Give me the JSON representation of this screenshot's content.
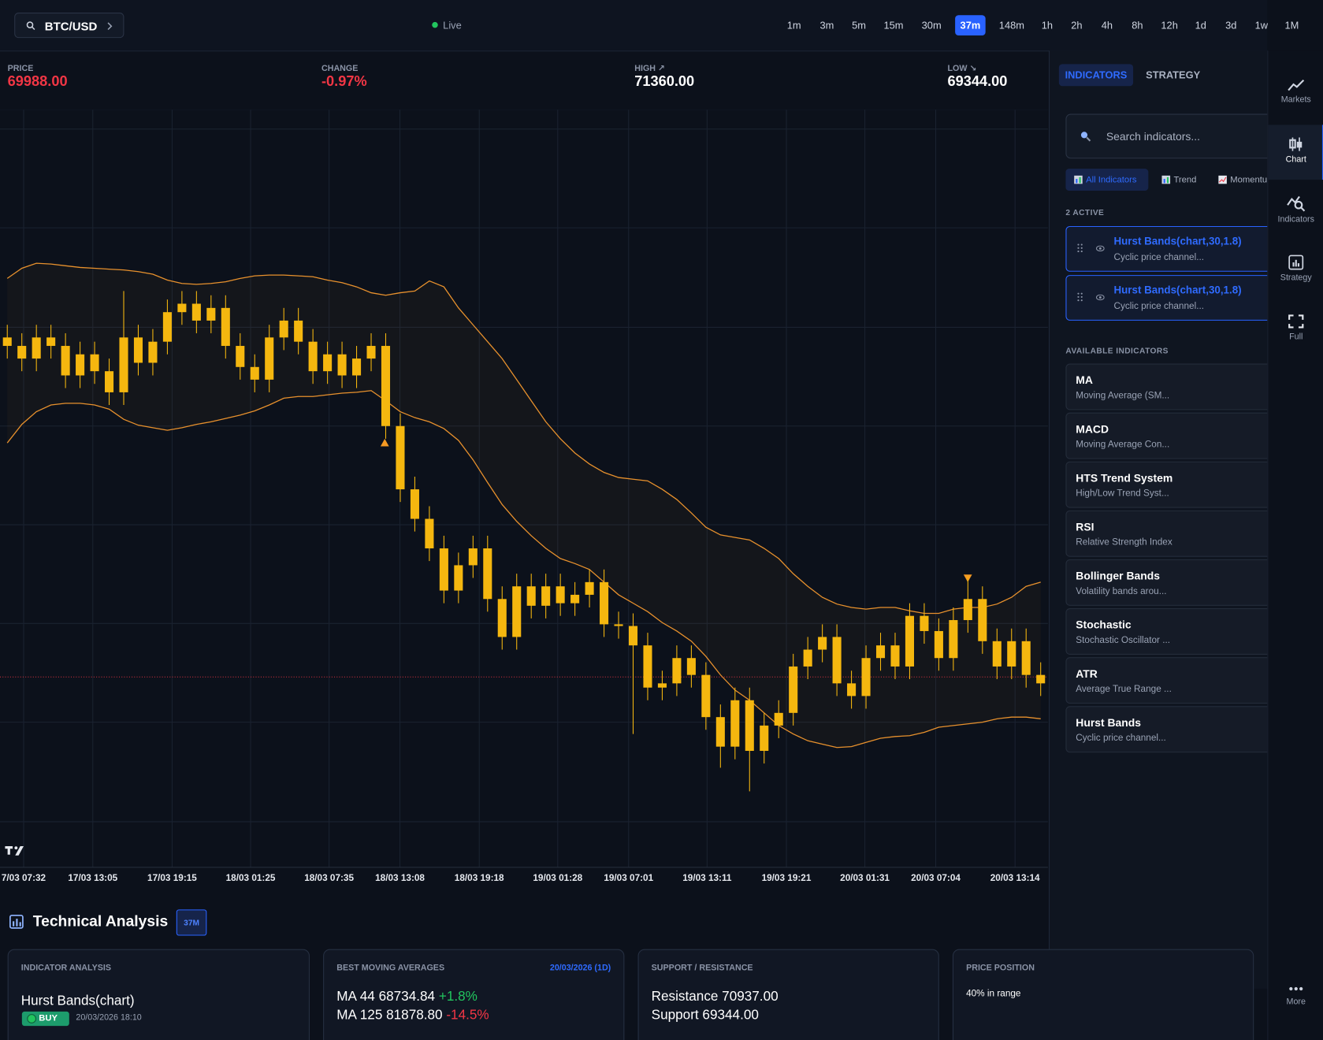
{
  "top_bar": {
    "symbol": "BTC/USD",
    "status": "Live",
    "timeframes": [
      "1m",
      "3m",
      "5m",
      "15m",
      "30m",
      "37m",
      "148m",
      "1h",
      "2h",
      "4h",
      "8h",
      "12h",
      "1d",
      "3d",
      "1w",
      "1M"
    ],
    "active_timeframe": "37m"
  },
  "stats": [
    {
      "label": "PRICE",
      "value": "69988.00",
      "color": "#f23645"
    },
    {
      "label": "CHANGE",
      "value": "-0.97%",
      "color": "#f23645"
    },
    {
      "label": "HIGH ↗",
      "value": "71360.00",
      "color": "#ffffff"
    },
    {
      "label": "LOW ↘",
      "value": "69344.00",
      "color": "#ffffff"
    }
  ],
  "chart_data": {
    "type": "candlestick",
    "color": "#f5b70f",
    "ylim": [
      68860,
      73350
    ],
    "open": [
      72000,
      71950,
      71875,
      72000,
      71950,
      71775,
      71900,
      71800,
      71675,
      72000,
      71850,
      71975,
      72150,
      72200,
      72100,
      72175,
      71950,
      71825,
      71750,
      72000,
      72100,
      71975,
      71800,
      71900,
      71775,
      71875,
      71950,
      71475,
      71100,
      70925,
      70750,
      70500,
      70650,
      70750,
      70450,
      70225,
      70525,
      70410,
      70525,
      70425,
      70475,
      70550,
      70300,
      70290,
      70175,
      69925,
      69950,
      70100,
      70000,
      69750,
      69575,
      69850,
      69550,
      69700,
      69775,
      70050,
      70150,
      70225,
      69950,
      69875,
      70100,
      70175,
      70050,
      70350,
      70260,
      70100,
      70325,
      70450,
      70200,
      70050,
      70200,
      70000
    ],
    "high": [
      72075,
      72025,
      72075,
      72075,
      72025,
      71975,
      71975,
      71875,
      72275,
      72075,
      72050,
      72225,
      72275,
      72275,
      72250,
      72250,
      72025,
      71900,
      72075,
      72175,
      72175,
      72050,
      71975,
      71975,
      71950,
      72025,
      72025,
      71550,
      71175,
      71000,
      70825,
      70725,
      70825,
      70825,
      70525,
      70600,
      70600,
      70600,
      70600,
      70550,
      70625,
      70625,
      70375,
      70365,
      70250,
      70025,
      70175,
      70175,
      70075,
      69825,
      69925,
      69925,
      69775,
      69850,
      70125,
      70225,
      70300,
      70300,
      70025,
      70175,
      70250,
      70250,
      70425,
      70425,
      70335,
      70400,
      70585,
      70525,
      70275,
      70275,
      70275,
      70075
    ],
    "low": [
      71875,
      71800,
      71800,
      71875,
      71700,
      71700,
      71725,
      71600,
      71600,
      71775,
      71775,
      71900,
      72075,
      72025,
      72025,
      71875,
      71750,
      71675,
      71675,
      71925,
      71900,
      71725,
      71725,
      71700,
      71700,
      71800,
      71400,
      71025,
      70850,
      70675,
      70425,
      70425,
      70575,
      70375,
      70150,
      70150,
      70335,
      70335,
      70350,
      70350,
      70400,
      70225,
      70215,
      69650,
      69850,
      69850,
      69875,
      69925,
      69675,
      69450,
      69500,
      69310,
      69475,
      69625,
      69700,
      69975,
      70075,
      69875,
      69800,
      69800,
      70025,
      69975,
      69975,
      70185,
      70025,
      70025,
      70250,
      70125,
      69975,
      69975,
      69925,
      69875
    ],
    "close": [
      71950,
      71875,
      72000,
      71950,
      71775,
      71900,
      71800,
      71675,
      72000,
      71850,
      71975,
      72150,
      72200,
      72100,
      72175,
      71950,
      71825,
      71750,
      72000,
      72100,
      71975,
      71800,
      71900,
      71775,
      71875,
      71950,
      71475,
      71100,
      70925,
      70750,
      70500,
      70650,
      70750,
      70450,
      70225,
      70525,
      70410,
      70525,
      70425,
      70475,
      70550,
      70300,
      70290,
      70175,
      69925,
      69950,
      70100,
      70000,
      69750,
      69575,
      69850,
      69550,
      69700,
      69775,
      70050,
      70150,
      70225,
      69950,
      69875,
      70100,
      70175,
      70050,
      70350,
      70260,
      70100,
      70325,
      70450,
      70200,
      70050,
      70200,
      70000,
      69950
    ],
    "bands": [
      {
        "color": "#e8912d",
        "values": [
          72350,
          72410,
          72440,
          72435,
          72425,
          72415,
          72410,
          72405,
          72400,
          72390,
          72375,
          72340,
          72320,
          72315,
          72320,
          72330,
          72350,
          72365,
          72370,
          72370,
          72365,
          72360,
          72340,
          72325,
          72300,
          72265,
          72250,
          72265,
          72275,
          72335,
          72300,
          72175,
          72075,
          71975,
          71875,
          71750,
          71625,
          71500,
          71400,
          71315,
          71250,
          71200,
          71170,
          71160,
          71150,
          71100,
          71040,
          70960,
          70875,
          70830,
          70815,
          70800,
          70750,
          70690,
          70600,
          70525,
          70460,
          70420,
          70400,
          70390,
          70400,
          70400,
          70380,
          70365,
          70365,
          70390,
          70400,
          70400,
          70420,
          70460,
          70525,
          70550
        ]
      },
      {
        "color": "#e8912d",
        "values": [
          71375,
          71485,
          71560,
          71600,
          71610,
          71610,
          71600,
          71575,
          71515,
          71480,
          71465,
          71450,
          71465,
          71485,
          71500,
          71520,
          71540,
          71565,
          71600,
          71640,
          71650,
          71650,
          71660,
          71670,
          71675,
          71685,
          71625,
          71560,
          71525,
          71500,
          71460,
          71390,
          71275,
          71140,
          71010,
          70910,
          70825,
          70750,
          70690,
          70660,
          70625,
          70550,
          70475,
          70425,
          70375,
          70310,
          70260,
          70200,
          70110,
          70000,
          69910,
          69850,
          69775,
          69700,
          69650,
          69610,
          69590,
          69570,
          69575,
          69600,
          69625,
          69635,
          69640,
          69660,
          69690,
          69700,
          69710,
          69720,
          69740,
          69750,
          69750,
          69740
        ]
      }
    ],
    "x_tick_labels": [
      "7/03 07:32",
      "17/03 13:05",
      "17/03 19:15",
      "18/03 01:25",
      "18/03 07:35",
      "18/03 13:08",
      "18/03 19:18",
      "19/03 01:28",
      "19/03 07:01",
      "19/03 13:11",
      "19/03 19:21",
      "20/03 01:31",
      "20/03 07:04",
      "20/03 13:14"
    ]
  },
  "panel": {
    "tabs": [
      "INDICATORS",
      "STRATEGY"
    ],
    "search_placeholder": "Search indicators...",
    "filters": [
      "All Indicators",
      "Trend",
      "Momentu"
    ],
    "active_heading": "2 ACTIVE",
    "active": [
      {
        "name": "Hurst Bands(chart,30,1.8)",
        "description": "Cyclic price channel..."
      },
      {
        "name": "Hurst Bands(chart,30,1.8)",
        "description": "Cyclic price channel..."
      }
    ],
    "available_heading": "AVAILABLE INDICATORS",
    "available": [
      {
        "name": "MA",
        "description": "Moving Average (SM..."
      },
      {
        "name": "MACD",
        "description": "Moving Average Con..."
      },
      {
        "name": "HTS Trend System",
        "description": "High/Low Trend Syst..."
      },
      {
        "name": "RSI",
        "description": "Relative Strength Index"
      },
      {
        "name": "Bollinger Bands",
        "description": "Volatility bands arou..."
      },
      {
        "name": "Stochastic",
        "description": "Stochastic Oscillator ..."
      },
      {
        "name": "ATR",
        "description": "Average True Range ..."
      },
      {
        "name": "Hurst Bands",
        "description": "Cyclic price channel..."
      }
    ]
  },
  "sidebar": [
    "Markets",
    "Chart",
    "Indicators",
    "Strategy",
    "Full",
    "More"
  ],
  "analysis": {
    "title": "Technical Analysis",
    "badge": "37M",
    "indicator": {
      "heading": "INDICATOR ANALYSIS",
      "name": "Hurst Bands(chart)",
      "signal": "BUY",
      "time": "20/03/2026 18:10"
    },
    "moving_averages": {
      "heading": "BEST MOVING AVERAGES",
      "date": "20/03/2026 (1D)",
      "rows": [
        {
          "label": "MA 44 68734.84",
          "change": "+1.8%"
        },
        {
          "label": "MA 125 81878.80",
          "change": "-14.5%"
        }
      ]
    },
    "support_resistance": {
      "heading": "SUPPORT / RESISTANCE",
      "resistance": "Resistance 70937.00",
      "support": "Support 69344.00"
    },
    "price_position": {
      "heading": "PRICE POSITION",
      "value": "40% in range"
    }
  }
}
